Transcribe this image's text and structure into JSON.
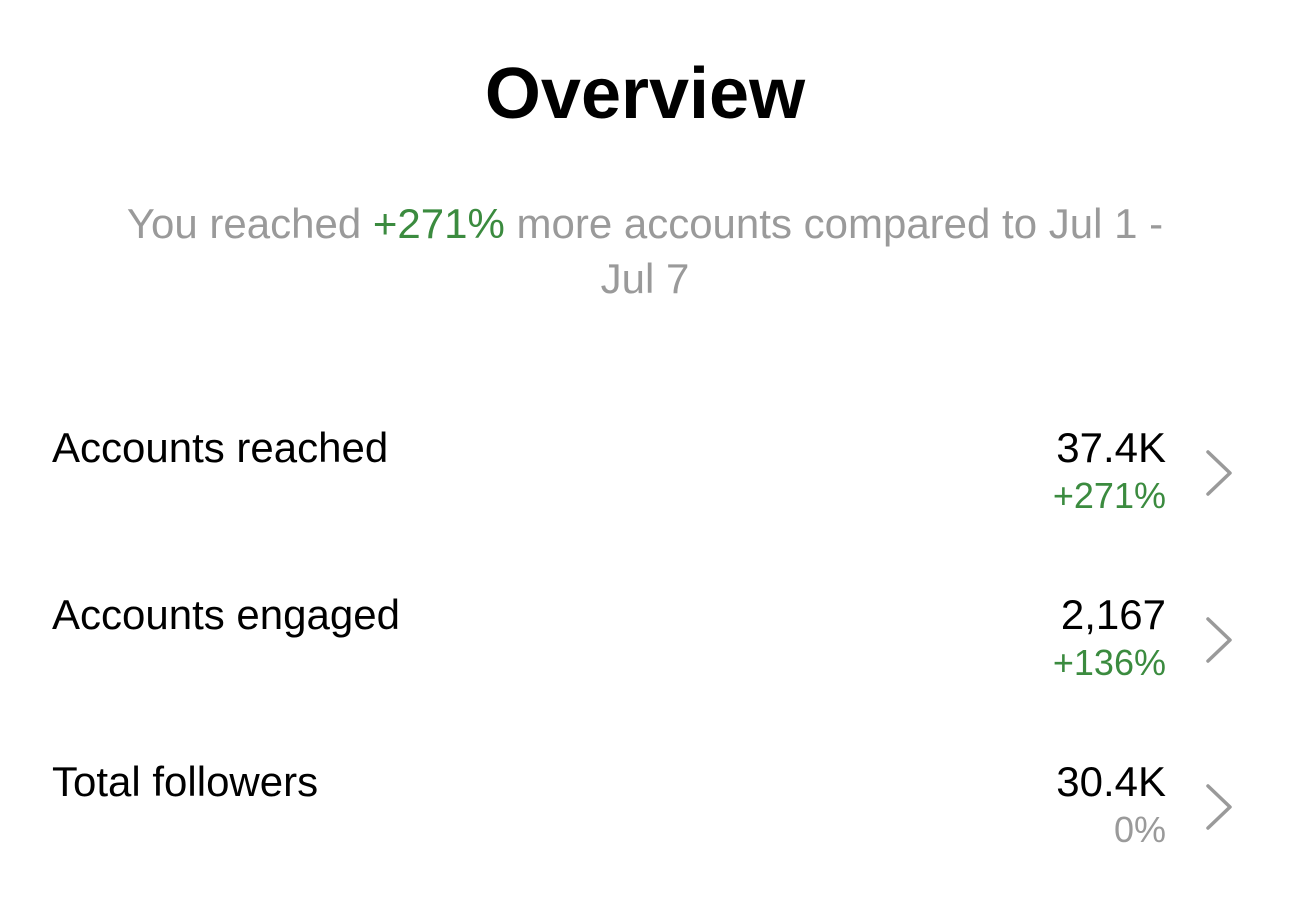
{
  "header": {
    "title": "Overview"
  },
  "summary": {
    "prefix": "You reached",
    "highlight": "+271%",
    "highlight_color": "#3b8b3f",
    "suffix": "more accounts compared to Jul 1 - Jul 7"
  },
  "metrics": [
    {
      "label": "Accounts reached",
      "value": "37.4K",
      "change": "+271%",
      "change_color": "#3b8b3f"
    },
    {
      "label": "Accounts engaged",
      "value": "2,167",
      "change": "+136%",
      "change_color": "#3b8b3f"
    },
    {
      "label": "Total followers",
      "value": "30.4K",
      "change": "0%",
      "change_color": "#9a9a9a"
    }
  ]
}
